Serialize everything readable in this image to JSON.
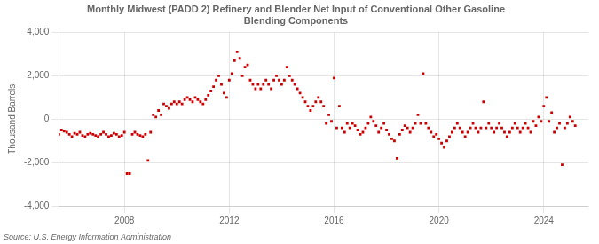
{
  "chart_data": {
    "type": "scatter",
    "title": "Monthly Midwest (PADD 2) Refinery and Blender Net Input of Conventional Other Gasoline\nBlending Components",
    "ylabel": "Thousand Barrels",
    "annotations": [
      "Source: U.S. Energy Information Administration"
    ],
    "color": "#CC0000",
    "marker": "square",
    "grid": true,
    "xlim": [
      2005.5,
      2025.7
    ],
    "xticks": [
      2008,
      2012,
      2016,
      2020,
      2024
    ],
    "ylim": [
      -4000,
      4000
    ],
    "yticks": [
      {
        "value": -4000,
        "label": "-4,000"
      },
      {
        "value": -2000,
        "label": "-2,000"
      },
      0,
      {
        "value": 2000,
        "label": "2,000"
      },
      {
        "value": 4000,
        "label": "4,000"
      }
    ],
    "x": [
      2005.5,
      2005.6,
      2005.7,
      2005.8,
      2005.9,
      2006.0,
      2006.1,
      2006.2,
      2006.3,
      2006.4,
      2006.5,
      2006.6,
      2006.7,
      2006.8,
      2006.9,
      2007.0,
      2007.1,
      2007.2,
      2007.3,
      2007.4,
      2007.5,
      2007.6,
      2007.7,
      2007.8,
      2007.9,
      2008.0,
      2008.1,
      2008.2,
      2008.3,
      2008.4,
      2008.5,
      2008.6,
      2008.7,
      2008.8,
      2008.9,
      2009.0,
      2009.1,
      2009.2,
      2009.3,
      2009.4,
      2009.5,
      2009.6,
      2009.7,
      2009.8,
      2009.9,
      2010.0,
      2010.1,
      2010.2,
      2010.3,
      2010.4,
      2010.5,
      2010.6,
      2010.7,
      2010.8,
      2010.9,
      2011.0,
      2011.1,
      2011.2,
      2011.3,
      2011.4,
      2011.5,
      2011.6,
      2011.7,
      2011.8,
      2011.9,
      2012.0,
      2012.1,
      2012.2,
      2012.3,
      2012.4,
      2012.5,
      2012.6,
      2012.7,
      2012.8,
      2012.9,
      2013.0,
      2013.1,
      2013.2,
      2013.3,
      2013.4,
      2013.5,
      2013.6,
      2013.7,
      2013.8,
      2013.9,
      2014.0,
      2014.1,
      2014.2,
      2014.3,
      2014.4,
      2014.5,
      2014.6,
      2014.7,
      2014.8,
      2014.9,
      2015.0,
      2015.1,
      2015.2,
      2015.3,
      2015.4,
      2015.5,
      2015.6,
      2015.7,
      2015.8,
      2015.9,
      2016.0,
      2016.1,
      2016.2,
      2016.3,
      2016.4,
      2016.5,
      2016.6,
      2016.7,
      2016.8,
      2016.9,
      2017.0,
      2017.1,
      2017.2,
      2017.3,
      2017.4,
      2017.5,
      2017.6,
      2017.7,
      2017.8,
      2017.9,
      2018.0,
      2018.1,
      2018.2,
      2018.3,
      2018.4,
      2018.5,
      2018.6,
      2018.7,
      2018.8,
      2018.9,
      2019.0,
      2019.1,
      2019.2,
      2019.3,
      2019.4,
      2019.5,
      2019.6,
      2019.7,
      2019.8,
      2019.9,
      2020.0,
      2020.1,
      2020.2,
      2020.3,
      2020.4,
      2020.5,
      2020.6,
      2020.7,
      2020.8,
      2020.9,
      2021.0,
      2021.1,
      2021.2,
      2021.3,
      2021.4,
      2021.5,
      2021.6,
      2021.7,
      2021.8,
      2021.9,
      2022.0,
      2022.1,
      2022.2,
      2022.3,
      2022.4,
      2022.5,
      2022.6,
      2022.7,
      2022.8,
      2022.9,
      2023.0,
      2023.1,
      2023.2,
      2023.3,
      2023.4,
      2023.5,
      2023.6,
      2023.7,
      2023.8,
      2023.9,
      2024.0,
      2024.1,
      2024.2,
      2024.3,
      2024.4,
      2024.5,
      2024.6,
      2024.7,
      2024.8,
      2024.9,
      2025.0,
      2025.1,
      2025.2
    ],
    "values": [
      -700,
      -500,
      -550,
      -600,
      -700,
      -800,
      -650,
      -700,
      -600,
      -750,
      -800,
      -700,
      -650,
      -700,
      -750,
      -800,
      -700,
      -600,
      -700,
      -800,
      -750,
      -650,
      -700,
      -800,
      -750,
      -600,
      -2500,
      -2500,
      -700,
      -600,
      -700,
      -750,
      -800,
      -700,
      -1900,
      -600,
      200,
      100,
      400,
      200,
      700,
      600,
      500,
      700,
      800,
      700,
      800,
      700,
      900,
      1000,
      900,
      800,
      1000,
      900,
      800,
      700,
      900,
      1100,
      1300,
      1500,
      1800,
      2000,
      1600,
      1200,
      1000,
      1800,
      2100,
      2700,
      3100,
      2800,
      2000,
      2400,
      2500,
      1800,
      1600,
      1400,
      1600,
      1400,
      1600,
      1800,
      1600,
      1400,
      1800,
      2000,
      1800,
      1600,
      1800,
      2400,
      2000,
      1800,
      1600,
      1400,
      1200,
      1000,
      800,
      600,
      400,
      600,
      800,
      1000,
      800,
      600,
      -200,
      200,
      -100,
      1900,
      -400,
      600,
      -400,
      -600,
      -200,
      -400,
      -200,
      -300,
      -500,
      -700,
      -600,
      -400,
      -200,
      100,
      -100,
      -300,
      -600,
      -400,
      -200,
      -500,
      -700,
      -900,
      -1000,
      -1800,
      -700,
      -500,
      -300,
      -400,
      -600,
      -400,
      -200,
      200,
      -200,
      2100,
      -200,
      -400,
      -600,
      -800,
      -700,
      -900,
      -1100,
      -1300,
      -1000,
      -800,
      -600,
      -400,
      -200,
      -400,
      -600,
      -800,
      -600,
      -400,
      -200,
      -400,
      -600,
      -400,
      800,
      -400,
      -200,
      -400,
      -600,
      -400,
      -200,
      -400,
      -600,
      -800,
      -600,
      -400,
      -200,
      -400,
      -600,
      -400,
      -200,
      -400,
      -600,
      -100,
      -300,
      100,
      -100,
      600,
      1000,
      -100,
      300,
      -600,
      -400,
      -200,
      -2100,
      -400,
      -200,
      100,
      -100,
      -300
    ]
  }
}
